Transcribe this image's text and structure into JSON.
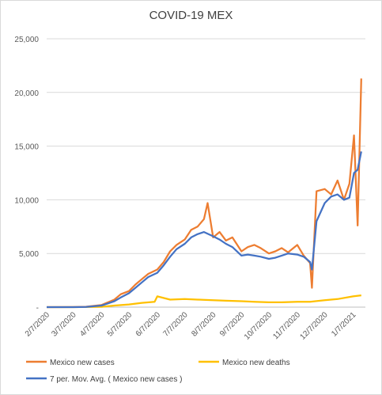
{
  "chart_data": {
    "type": "line",
    "title": "COVID-19 MEX",
    "xlabel": "",
    "ylabel": "",
    "ylim": [
      0,
      25000
    ],
    "y_ticks": [
      "-",
      "5,000",
      "10,000",
      "15,000",
      "20,000",
      "25,000"
    ],
    "y_tick_values": [
      0,
      5000,
      10000,
      15000,
      20000,
      25000
    ],
    "x_ticks": [
      "2/7/2020",
      "3/7/2020",
      "4/7/2020",
      "5/7/2020",
      "6/7/2020",
      "7/7/2020",
      "8/7/2020",
      "9/7/2020",
      "10/7/2020",
      "11/7/2020",
      "12/7/2020",
      "1/7/2021"
    ],
    "x_range": [
      "2/7/2020",
      "1/17/2021"
    ],
    "grid": true,
    "legend_position": "bottom",
    "series": [
      {
        "name": "Mexico new cases",
        "color": "#ED7D31",
        "points": [
          [
            "2/7/2020",
            0
          ],
          [
            "3/7/2020",
            5
          ],
          [
            "3/21/2020",
            40
          ],
          [
            "4/7/2020",
            200
          ],
          [
            "4/14/2020",
            450
          ],
          [
            "4/21/2020",
            700
          ],
          [
            "4/28/2020",
            1200
          ],
          [
            "5/7/2020",
            1500
          ],
          [
            "5/14/2020",
            2100
          ],
          [
            "5/21/2020",
            2600
          ],
          [
            "5/28/2020",
            3100
          ],
          [
            "6/7/2020",
            3500
          ],
          [
            "6/14/2020",
            4200
          ],
          [
            "6/21/2020",
            5200
          ],
          [
            "6/28/2020",
            5800
          ],
          [
            "7/7/2020",
            6300
          ],
          [
            "7/14/2020",
            7200
          ],
          [
            "7/21/2020",
            7500
          ],
          [
            "7/28/2020",
            8200
          ],
          [
            "8/1/2020",
            9700
          ],
          [
            "8/7/2020",
            6500
          ],
          [
            "8/14/2020",
            7000
          ],
          [
            "8/21/2020",
            6200
          ],
          [
            "8/28/2020",
            6500
          ],
          [
            "9/7/2020",
            5200
          ],
          [
            "9/14/2020",
            5600
          ],
          [
            "9/21/2020",
            5800
          ],
          [
            "9/28/2020",
            5500
          ],
          [
            "10/7/2020",
            5000
          ],
          [
            "10/14/2020",
            5200
          ],
          [
            "10/21/2020",
            5500
          ],
          [
            "10/28/2020",
            5100
          ],
          [
            "11/7/2020",
            5800
          ],
          [
            "11/14/2020",
            4800
          ],
          [
            "11/21/2020",
            4100
          ],
          [
            "11/23/2020",
            1800
          ],
          [
            "11/28/2020",
            10800
          ],
          [
            "12/7/2020",
            11000
          ],
          [
            "12/14/2020",
            10500
          ],
          [
            "12/21/2020",
            11800
          ],
          [
            "12/28/2020",
            10000
          ],
          [
            "1/3/2021",
            11500
          ],
          [
            "1/8/2021",
            16000
          ],
          [
            "1/12/2021",
            7600
          ],
          [
            "1/16/2021",
            21300
          ]
        ]
      },
      {
        "name": "Mexico new deaths",
        "color": "#FFC000",
        "points": [
          [
            "2/7/2020",
            0
          ],
          [
            "3/7/2020",
            0
          ],
          [
            "4/7/2020",
            30
          ],
          [
            "4/21/2020",
            150
          ],
          [
            "5/7/2020",
            250
          ],
          [
            "5/21/2020",
            400
          ],
          [
            "6/4/2020",
            500
          ],
          [
            "6/7/2020",
            1000
          ],
          [
            "6/21/2020",
            700
          ],
          [
            "7/7/2020",
            750
          ],
          [
            "7/21/2020",
            700
          ],
          [
            "8/7/2020",
            650
          ],
          [
            "8/21/2020",
            600
          ],
          [
            "9/7/2020",
            550
          ],
          [
            "9/21/2020",
            500
          ],
          [
            "10/7/2020",
            450
          ],
          [
            "10/21/2020",
            450
          ],
          [
            "11/7/2020",
            500
          ],
          [
            "11/21/2020",
            500
          ],
          [
            "12/7/2020",
            650
          ],
          [
            "12/21/2020",
            750
          ],
          [
            "1/7/2021",
            1000
          ],
          [
            "1/16/2021",
            1100
          ]
        ]
      },
      {
        "name": "7 per. Mov. Avg. ( Mexico new cases )",
        "color": "#4472C4",
        "points": [
          [
            "2/7/2020",
            0
          ],
          [
            "3/7/2020",
            0
          ],
          [
            "3/21/2020",
            20
          ],
          [
            "4/7/2020",
            150
          ],
          [
            "4/14/2020",
            350
          ],
          [
            "4/21/2020",
            550
          ],
          [
            "4/28/2020",
            900
          ],
          [
            "5/7/2020",
            1300
          ],
          [
            "5/14/2020",
            1800
          ],
          [
            "5/21/2020",
            2300
          ],
          [
            "5/28/2020",
            2800
          ],
          [
            "6/7/2020",
            3200
          ],
          [
            "6/14/2020",
            3900
          ],
          [
            "6/21/2020",
            4700
          ],
          [
            "6/28/2020",
            5400
          ],
          [
            "7/7/2020",
            5900
          ],
          [
            "7/14/2020",
            6500
          ],
          [
            "7/21/2020",
            6800
          ],
          [
            "7/28/2020",
            7000
          ],
          [
            "8/7/2020",
            6600
          ],
          [
            "8/14/2020",
            6300
          ],
          [
            "8/21/2020",
            5900
          ],
          [
            "8/28/2020",
            5600
          ],
          [
            "9/7/2020",
            4800
          ],
          [
            "9/14/2020",
            4900
          ],
          [
            "9/21/2020",
            4800
          ],
          [
            "9/28/2020",
            4700
          ],
          [
            "10/7/2020",
            4500
          ],
          [
            "10/14/2020",
            4600
          ],
          [
            "10/21/2020",
            4800
          ],
          [
            "10/28/2020",
            5000
          ],
          [
            "11/7/2020",
            4900
          ],
          [
            "11/14/2020",
            4700
          ],
          [
            "11/21/2020",
            4200
          ],
          [
            "11/23/2020",
            3500
          ],
          [
            "11/28/2020",
            8000
          ],
          [
            "12/7/2020",
            9700
          ],
          [
            "12/14/2020",
            10300
          ],
          [
            "12/21/2020",
            10500
          ],
          [
            "12/28/2020",
            10000
          ],
          [
            "1/3/2021",
            10200
          ],
          [
            "1/8/2021",
            12500
          ],
          [
            "1/12/2021",
            12800
          ],
          [
            "1/16/2021",
            14500
          ]
        ]
      }
    ]
  }
}
